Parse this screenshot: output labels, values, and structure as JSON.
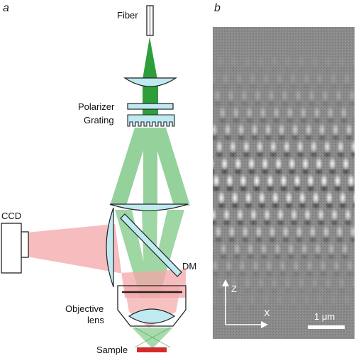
{
  "panel_a": {
    "label": "a",
    "components": {
      "fiber": "Fiber",
      "polarizer": "Polarizer",
      "grating": "Grating",
      "ccd": "CCD",
      "dm": "DM",
      "objective_line1": "Objective",
      "objective_line2": "lens",
      "sample": "Sample"
    }
  },
  "panel_b": {
    "label": "b",
    "axis_z": "Z",
    "axis_x": "X",
    "scale_bar": "1 μm"
  },
  "colors": {
    "excitation_beam": "#2e9e3a",
    "emission_beam": "#f4a6a8",
    "lens_fill": "#bfeaf2",
    "sample": "#d42a2a"
  }
}
